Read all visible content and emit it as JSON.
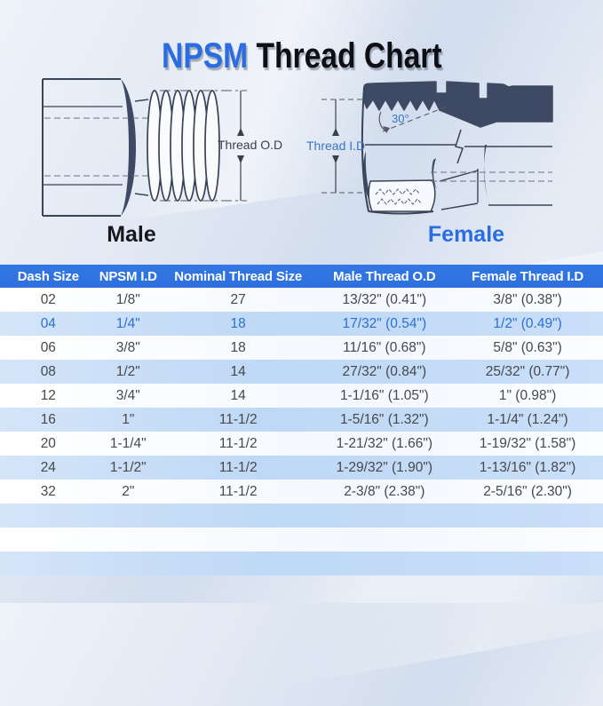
{
  "title": {
    "brand": "NPSM",
    "rest": " Thread Chart"
  },
  "theme": {
    "accent_blue": "#2b6ce2",
    "title_text": "#0e0f14",
    "header_bg": "#2d70dd",
    "row_text": "#46484c",
    "highlight_text": "#2b70d6",
    "navy": "#3e4a63"
  },
  "diagrams": {
    "male": {
      "label": "Male",
      "annotation": "Thread O.D"
    },
    "female": {
      "label": "Female",
      "annotation": "Thread I.D",
      "angle_label": "30°"
    }
  },
  "table": {
    "columns": [
      "Dash Size",
      "NPSM I.D",
      "Nominal Thread Size",
      "Male Thread O.D",
      "Female Thread I.D"
    ],
    "rows": [
      {
        "highlighted": false,
        "cells": [
          "02",
          "1/8\"",
          "27",
          "13/32\" (0.41\")",
          "3/8\" (0.38\")"
        ]
      },
      {
        "highlighted": true,
        "cells": [
          "04",
          "1/4\"",
          "18",
          "17/32\" (0.54\")",
          "1/2\" (0.49\")"
        ]
      },
      {
        "highlighted": false,
        "cells": [
          "06",
          "3/8\"",
          "18",
          "11/16\" (0.68\")",
          "5/8\" (0.63\")"
        ]
      },
      {
        "highlighted": false,
        "cells": [
          "08",
          "1/2\"",
          "14",
          "27/32\" (0.84\")",
          "25/32\" (0.77\")"
        ]
      },
      {
        "highlighted": false,
        "cells": [
          "12",
          "3/4\"",
          "14",
          "1-1/16\" (1.05\")",
          "1\" (0.98\")"
        ]
      },
      {
        "highlighted": false,
        "cells": [
          "16",
          "1\"",
          "11-1/2",
          "1-5/16\" (1.32\")",
          "1-1/4\" (1.24\")"
        ]
      },
      {
        "highlighted": false,
        "cells": [
          "20",
          "1-1/4\"",
          "11-1/2",
          "1-21/32\" (1.66\")",
          "1-19/32\" (1.58\")"
        ]
      },
      {
        "highlighted": false,
        "cells": [
          "24",
          "1-1/2\"",
          "11-1/2",
          "1-29/32\" (1.90\")",
          "1-13/16\" (1.82\")"
        ]
      },
      {
        "highlighted": false,
        "cells": [
          "32",
          "2\"",
          "11-1/2",
          "2-3/8\" (2.38\")",
          "2-5/16\" (2.30\")"
        ]
      }
    ]
  }
}
